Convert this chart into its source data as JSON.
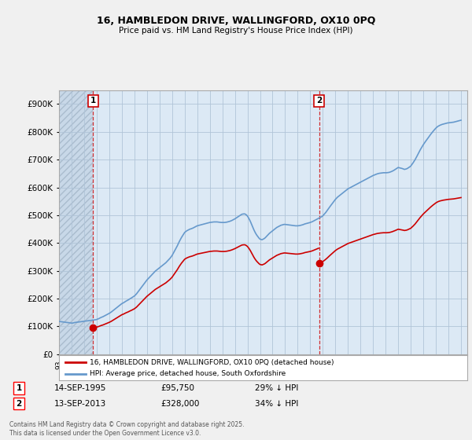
{
  "title": "16, HAMBLEDON DRIVE, WALLINGFORD, OX10 0PQ",
  "subtitle": "Price paid vs. HM Land Registry's House Price Index (HPI)",
  "ylim": [
    0,
    950000
  ],
  "yticks": [
    0,
    100000,
    200000,
    300000,
    400000,
    500000,
    600000,
    700000,
    800000,
    900000
  ],
  "ytick_labels": [
    "£0",
    "£100K",
    "£200K",
    "£300K",
    "£400K",
    "£500K",
    "£600K",
    "£700K",
    "£800K",
    "£900K"
  ],
  "background_color": "#f0f0f0",
  "plot_bg_color": "#dce9f5",
  "hatch_bg_color": "#c8d8e8",
  "grid_color": "#b0c4d8",
  "hpi_color": "#6699cc",
  "price_color": "#cc0000",
  "annotation_color": "#cc0000",
  "sale1_date": 1995.71,
  "sale1_price": 95750,
  "sale2_date": 2013.71,
  "sale2_price": 328000,
  "legend_line1": "16, HAMBLEDON DRIVE, WALLINGFORD, OX10 0PQ (detached house)",
  "legend_line2": "HPI: Average price, detached house, South Oxfordshire",
  "footnote1_date": "14-SEP-1995",
  "footnote1_price": "£95,750",
  "footnote1_hpi": "29% ↓ HPI",
  "footnote2_date": "13-SEP-2013",
  "footnote2_price": "£328,000",
  "footnote2_hpi": "34% ↓ HPI",
  "copyright": "Contains HM Land Registry data © Crown copyright and database right 2025.\nThis data is licensed under the Open Government Licence v3.0.",
  "hpi_years": [
    1993.0,
    1993.083,
    1993.167,
    1993.25,
    1993.333,
    1993.417,
    1993.5,
    1993.583,
    1993.667,
    1993.75,
    1993.833,
    1993.917,
    1994.0,
    1994.083,
    1994.167,
    1994.25,
    1994.333,
    1994.417,
    1994.5,
    1994.583,
    1994.667,
    1994.75,
    1994.833,
    1994.917,
    1995.0,
    1995.083,
    1995.167,
    1995.25,
    1995.333,
    1995.417,
    1995.5,
    1995.583,
    1995.667,
    1995.75,
    1995.833,
    1995.917,
    1996.0,
    1996.083,
    1996.167,
    1996.25,
    1996.333,
    1996.417,
    1996.5,
    1996.583,
    1996.667,
    1996.75,
    1996.833,
    1996.917,
    1997.0,
    1997.083,
    1997.167,
    1997.25,
    1997.333,
    1997.417,
    1997.5,
    1997.583,
    1997.667,
    1997.75,
    1997.833,
    1997.917,
    1998.0,
    1998.083,
    1998.167,
    1998.25,
    1998.333,
    1998.417,
    1998.5,
    1998.583,
    1998.667,
    1998.75,
    1998.833,
    1998.917,
    1999.0,
    1999.083,
    1999.167,
    1999.25,
    1999.333,
    1999.417,
    1999.5,
    1999.583,
    1999.667,
    1999.75,
    1999.833,
    1999.917,
    2000.0,
    2000.083,
    2000.167,
    2000.25,
    2000.333,
    2000.417,
    2000.5,
    2000.583,
    2000.667,
    2000.75,
    2000.833,
    2000.917,
    2001.0,
    2001.083,
    2001.167,
    2001.25,
    2001.333,
    2001.417,
    2001.5,
    2001.583,
    2001.667,
    2001.75,
    2001.833,
    2001.917,
    2002.0,
    2002.083,
    2002.167,
    2002.25,
    2002.333,
    2002.417,
    2002.5,
    2002.583,
    2002.667,
    2002.75,
    2002.833,
    2002.917,
    2003.0,
    2003.083,
    2003.167,
    2003.25,
    2003.333,
    2003.417,
    2003.5,
    2003.583,
    2003.667,
    2003.75,
    2003.833,
    2003.917,
    2004.0,
    2004.083,
    2004.167,
    2004.25,
    2004.333,
    2004.417,
    2004.5,
    2004.583,
    2004.667,
    2004.75,
    2004.833,
    2004.917,
    2005.0,
    2005.083,
    2005.167,
    2005.25,
    2005.333,
    2005.417,
    2005.5,
    2005.583,
    2005.667,
    2005.75,
    2005.833,
    2005.917,
    2006.0,
    2006.083,
    2006.167,
    2006.25,
    2006.333,
    2006.417,
    2006.5,
    2006.583,
    2006.667,
    2006.75,
    2006.833,
    2006.917,
    2007.0,
    2007.083,
    2007.167,
    2007.25,
    2007.333,
    2007.417,
    2007.5,
    2007.583,
    2007.667,
    2007.75,
    2007.833,
    2007.917,
    2008.0,
    2008.083,
    2008.167,
    2008.25,
    2008.333,
    2008.417,
    2008.5,
    2008.583,
    2008.667,
    2008.75,
    2008.833,
    2008.917,
    2009.0,
    2009.083,
    2009.167,
    2009.25,
    2009.333,
    2009.417,
    2009.5,
    2009.583,
    2009.667,
    2009.75,
    2009.833,
    2009.917,
    2010.0,
    2010.083,
    2010.167,
    2010.25,
    2010.333,
    2010.417,
    2010.5,
    2010.583,
    2010.667,
    2010.75,
    2010.833,
    2010.917,
    2011.0,
    2011.083,
    2011.167,
    2011.25,
    2011.333,
    2011.417,
    2011.5,
    2011.583,
    2011.667,
    2011.75,
    2011.833,
    2011.917,
    2012.0,
    2012.083,
    2012.167,
    2012.25,
    2012.333,
    2012.417,
    2012.5,
    2012.583,
    2012.667,
    2012.75,
    2012.833,
    2012.917,
    2013.0,
    2013.083,
    2013.167,
    2013.25,
    2013.333,
    2013.417,
    2013.5,
    2013.583,
    2013.667,
    2013.75,
    2013.833,
    2013.917,
    2014.0,
    2014.083,
    2014.167,
    2014.25,
    2014.333,
    2014.417,
    2014.5,
    2014.583,
    2014.667,
    2014.75,
    2014.833,
    2014.917,
    2015.0,
    2015.083,
    2015.167,
    2015.25,
    2015.333,
    2015.417,
    2015.5,
    2015.583,
    2015.667,
    2015.75,
    2015.833,
    2015.917,
    2016.0,
    2016.083,
    2016.167,
    2016.25,
    2016.333,
    2016.417,
    2016.5,
    2016.583,
    2016.667,
    2016.75,
    2016.833,
    2016.917,
    2017.0,
    2017.083,
    2017.167,
    2017.25,
    2017.333,
    2017.417,
    2017.5,
    2017.583,
    2017.667,
    2017.75,
    2017.833,
    2017.917,
    2018.0,
    2018.083,
    2018.167,
    2018.25,
    2018.333,
    2018.417,
    2018.5,
    2018.583,
    2018.667,
    2018.75,
    2018.833,
    2018.917,
    2019.0,
    2019.083,
    2019.167,
    2019.25,
    2019.333,
    2019.417,
    2019.5,
    2019.583,
    2019.667,
    2019.75,
    2019.833,
    2019.917,
    2020.0,
    2020.083,
    2020.167,
    2020.25,
    2020.333,
    2020.417,
    2020.5,
    2020.583,
    2020.667,
    2020.75,
    2020.833,
    2020.917,
    2021.0,
    2021.083,
    2021.167,
    2021.25,
    2021.333,
    2021.417,
    2021.5,
    2021.583,
    2021.667,
    2021.75,
    2021.833,
    2021.917,
    2022.0,
    2022.083,
    2022.167,
    2022.25,
    2022.333,
    2022.417,
    2022.5,
    2022.583,
    2022.667,
    2022.75,
    2022.833,
    2022.917,
    2023.0,
    2023.083,
    2023.167,
    2023.25,
    2023.333,
    2023.417,
    2023.5,
    2023.583,
    2023.667,
    2023.75,
    2023.833,
    2023.917,
    2024.0,
    2024.083,
    2024.167,
    2024.25,
    2024.333,
    2024.417,
    2024.5,
    2024.583,
    2024.667,
    2024.75,
    2024.833,
    2024.917,
    2025.0
  ],
  "hpi_values": [
    118000,
    117500,
    117000,
    116500,
    116000,
    115500,
    115000,
    114500,
    114000,
    113500,
    113000,
    112500,
    112000,
    112000,
    113000,
    114000,
    114500,
    115000,
    115500,
    116000,
    116500,
    117000,
    117500,
    118000,
    118500,
    119000,
    119500,
    120000,
    120500,
    121000,
    121500,
    122000,
    122500,
    123000,
    123500,
    124000,
    125000,
    126500,
    128000,
    130000,
    132000,
    133500,
    135000,
    137000,
    139000,
    141000,
    143000,
    145000,
    147000,
    149500,
    152000,
    155000,
    158000,
    161000,
    164000,
    167000,
    170000,
    173000,
    176000,
    179000,
    182000,
    184000,
    186000,
    188500,
    191000,
    193000,
    195000,
    197500,
    200000,
    202000,
    204500,
    207000,
    209500,
    213000,
    217000,
    222000,
    227000,
    232000,
    237000,
    242000,
    247000,
    252000,
    257000,
    262000,
    267000,
    271000,
    275000,
    279000,
    283000,
    287000,
    291000,
    295000,
    299000,
    302000,
    305000,
    308000,
    311000,
    314000,
    317000,
    320000,
    323000,
    326000,
    329000,
    333000,
    337000,
    341000,
    345000,
    350000,
    355000,
    362000,
    369000,
    376000,
    383000,
    390000,
    398000,
    406000,
    413000,
    420000,
    426000,
    432000,
    438000,
    441000,
    444000,
    446000,
    448000,
    450000,
    451000,
    452500,
    454000,
    456000,
    458000,
    460000,
    462000,
    463000,
    464000,
    465000,
    466000,
    467000,
    468000,
    469000,
    470000,
    471000,
    472000,
    473000,
    474000,
    474500,
    475000,
    475500,
    476000,
    476000,
    476000,
    476000,
    475500,
    475000,
    474500,
    474000,
    474000,
    474000,
    474000,
    474500,
    475000,
    476000,
    477000,
    478000,
    479500,
    481000,
    483000,
    485000,
    487000,
    489500,
    492000,
    494500,
    497000,
    499500,
    502000,
    504000,
    504500,
    505000,
    504000,
    501000,
    497000,
    491000,
    484000,
    476000,
    467000,
    458000,
    449000,
    441000,
    434000,
    428000,
    423000,
    418000,
    414000,
    413000,
    412000,
    414000,
    416000,
    419000,
    423000,
    427000,
    431000,
    435000,
    438000,
    441000,
    444000,
    447000,
    450000,
    453000,
    456000,
    458000,
    460000,
    462000,
    464000,
    465000,
    466000,
    467000,
    467000,
    466500,
    466000,
    465500,
    465000,
    464500,
    464000,
    463500,
    463000,
    462500,
    462000,
    462000,
    462000,
    462500,
    463000,
    464000,
    465000,
    466000,
    467500,
    469000,
    470000,
    471000,
    472000,
    473000,
    474000,
    475500,
    477000,
    479000,
    481000,
    483000,
    485000,
    487000,
    489000,
    491000,
    493000,
    495000,
    498000,
    502000,
    506500,
    511000,
    516000,
    521500,
    527000,
    532000,
    537000,
    542000,
    547000,
    552000,
    557000,
    561000,
    565000,
    568000,
    571000,
    574000,
    577000,
    580000,
    583000,
    586000,
    589000,
    592000,
    595000,
    597000,
    599000,
    601000,
    603000,
    605000,
    607000,
    609000,
    611000,
    613000,
    615000,
    617000,
    619000,
    621000,
    623000,
    625000,
    627000,
    629000,
    631000,
    633000,
    635000,
    637000,
    639000,
    641000,
    643000,
    644500,
    646000,
    647500,
    649000,
    650000,
    651000,
    651500,
    652000,
    652500,
    653000,
    653000,
    653000,
    653000,
    653500,
    654000,
    655000,
    656500,
    658000,
    660000,
    662000,
    664500,
    667000,
    669500,
    672000,
    671000,
    670000,
    669000,
    668000,
    666500,
    665000,
    666000,
    667000,
    669000,
    671500,
    674000,
    677000,
    682000,
    687500,
    693000,
    699000,
    706000,
    713000,
    720500,
    728000,
    735000,
    741500,
    748000,
    754000,
    759500,
    765000,
    770000,
    775000,
    780500,
    786000,
    791000,
    796000,
    800500,
    805000,
    809500,
    813500,
    817000,
    820000,
    822000,
    824000,
    825500,
    827000,
    828000,
    829000,
    830000,
    831000,
    832000,
    832500,
    833000,
    833500,
    834000,
    834500,
    835000,
    836000,
    837000,
    838000,
    839000,
    840000,
    841000,
    842000
  ],
  "xlim_left": 1993.0,
  "xlim_right": 2025.5
}
